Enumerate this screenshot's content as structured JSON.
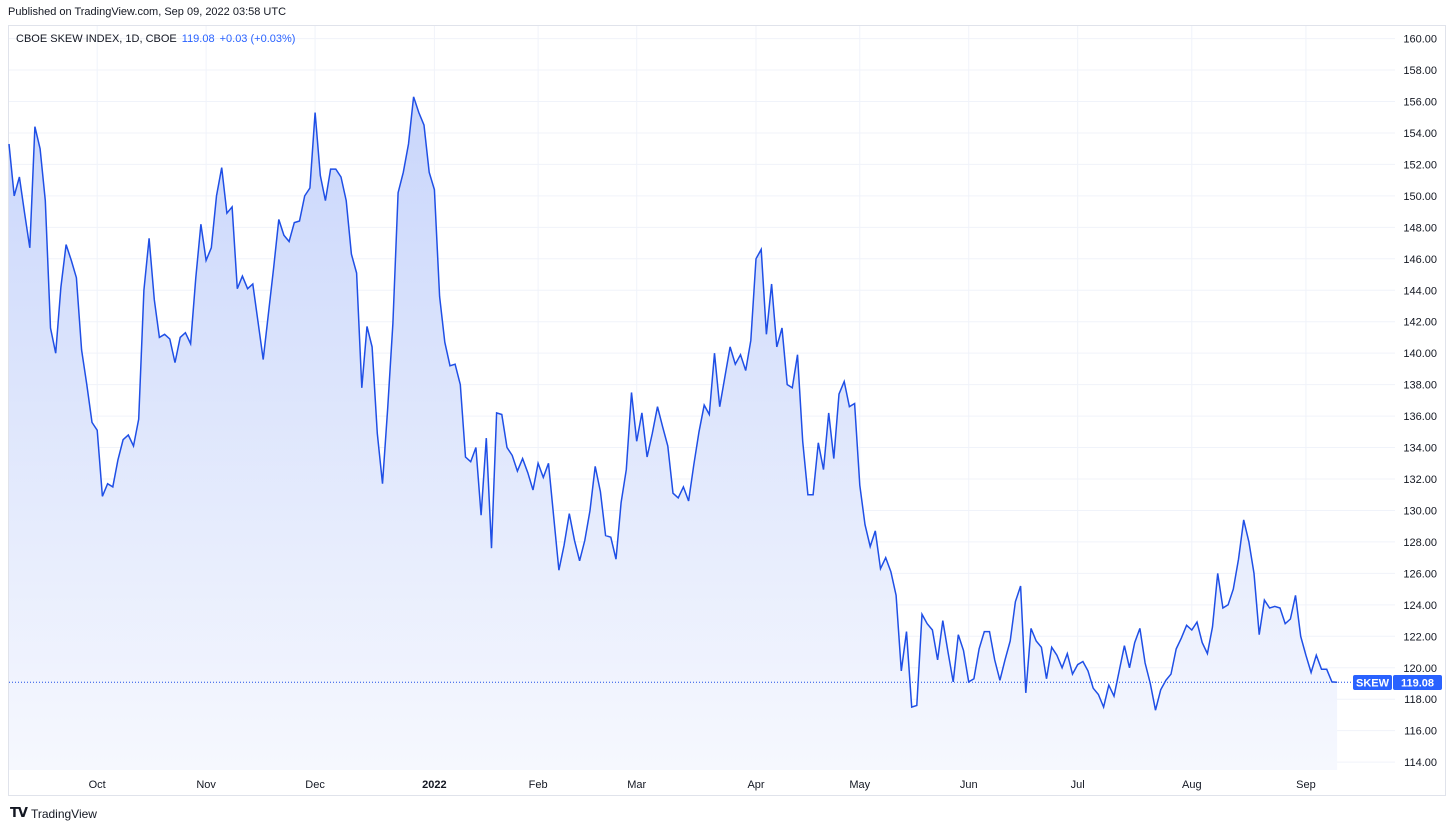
{
  "header": {
    "published": "Published on TradingView.com, Sep 09, 2022 03:58 UTC"
  },
  "legend": {
    "symbol": "CBOE SKEW INDEX, 1D, CBOE",
    "last": "119.08",
    "change": "+0.03 (+0.03%)"
  },
  "price_label": {
    "ticker": "SKEW",
    "value": "119.08"
  },
  "footer": {
    "logo_mark": "TV",
    "brand": "TradingView"
  },
  "colors": {
    "line": "#1f4fe6",
    "fill_top": "#c9d6fb",
    "fill_bottom": "#f6f8fe",
    "grid": "#f0f3fa",
    "axis_text": "#131722",
    "label_bg": "#2962ff"
  },
  "chart_data": {
    "type": "area",
    "series": [
      {
        "name": "SKEW",
        "values": [
          153.3,
          150,
          151.2,
          148.9,
          146.7,
          154.4,
          153,
          149.7,
          141.6,
          140,
          144.2,
          146.9,
          145.9,
          144.8,
          140.2,
          138,
          135.6,
          135.1,
          130.9,
          131.7,
          131.5,
          133.2,
          134.5,
          134.8,
          134.1,
          135.8,
          144,
          147.3,
          143.4,
          141,
          141.2,
          140.9,
          139.4,
          141,
          141.3,
          140.6,
          144.8,
          148.2,
          145.9,
          146.7,
          150,
          151.8,
          148.9,
          149.3,
          144.1,
          144.9,
          144.1,
          144.4,
          142,
          139.6,
          142.5,
          145.4,
          148.5,
          147.5,
          147.1,
          148.3,
          148.4,
          150,
          150.5,
          155.3,
          151.3,
          149.7,
          151.7,
          151.7,
          151.2,
          149.7,
          146.3,
          145.1,
          137.8,
          141.7,
          140.4,
          134.9,
          131.7,
          136.5,
          141.9,
          150.2,
          151.5,
          153.3,
          156.3,
          155.3,
          154.5,
          151.5,
          150.4,
          143.6,
          140.7,
          139.2,
          139.3,
          138,
          133.4,
          133.1,
          134,
          129.7,
          134.6,
          127.6,
          136.2,
          136.1,
          134,
          133.5,
          132.5,
          133.3,
          132.4,
          131.3,
          133,
          132.1,
          133,
          129.6,
          126.2,
          127.8,
          129.8,
          128.1,
          126.8,
          128.1,
          130,
          132.8,
          131.2,
          128.4,
          128.3,
          126.9,
          130.5,
          132.6,
          137.5,
          134.4,
          136.2,
          133.4,
          134.9,
          136.6,
          135.3,
          134.1,
          131.1,
          130.8,
          131.5,
          130.6,
          132.9,
          135,
          136.7,
          136.1,
          140,
          136.6,
          138.5,
          140.4,
          139.3,
          139.9,
          138.9,
          140.8,
          146,
          146.6,
          141.2,
          144.4,
          140.4,
          141.6,
          138,
          137.8,
          139.9,
          134.4,
          131,
          131,
          134.3,
          132.6,
          136.2,
          133.3,
          137.4,
          138.2,
          136.6,
          136.8,
          131.6,
          129.1,
          127.7,
          128.7,
          126.3,
          127,
          126.1,
          124.6,
          119.8,
          122.3,
          117.5,
          117.6,
          123.4,
          122.8,
          122.4,
          120.5,
          123,
          121,
          119.1,
          122.1,
          121.1,
          119.1,
          119.3,
          121.2,
          122.3,
          122.3,
          120.5,
          119.2,
          120.5,
          121.7,
          124.2,
          125.2,
          118.4,
          122.5,
          121.7,
          121.3,
          119.3,
          121.3,
          120.8,
          120,
          120.9,
          119.6,
          120.2,
          120.4,
          119.8,
          118.7,
          118.3,
          117.5,
          118.9,
          118.2,
          119.8,
          121.4,
          120,
          121.6,
          122.5,
          120.3,
          119,
          117.3,
          118.6,
          119.2,
          119.6,
          121.2,
          121.9,
          122.7,
          122.4,
          122.9,
          121.6,
          120.9,
          122.6,
          126,
          123.8,
          124,
          125,
          126.9,
          129.4,
          128,
          126,
          122.1,
          124.3,
          123.8,
          123.9,
          123.8,
          122.8,
          123.1,
          124.6,
          122,
          120.8,
          119.7,
          120.8,
          119.9,
          119.9,
          119.1,
          119.08
        ]
      }
    ],
    "x_ticks": [
      "Oct",
      "Nov",
      "Dec",
      "2022",
      "Feb",
      "Mar",
      "Apr",
      "May",
      "Jun",
      "Jul",
      "Aug",
      "Sep"
    ],
    "y_ticks": [
      "160.00",
      "158.00",
      "156.00",
      "154.00",
      "152.00",
      "150.00",
      "148.00",
      "146.00",
      "144.00",
      "142.00",
      "140.00",
      "138.00",
      "136.00",
      "134.00",
      "132.00",
      "130.00",
      "128.00",
      "126.00",
      "124.00",
      "122.00",
      "120.00",
      "118.00",
      "116.00",
      "114.00"
    ],
    "ylim": [
      113.5,
      160.8
    ],
    "last_value": 119.08,
    "grid": true
  }
}
